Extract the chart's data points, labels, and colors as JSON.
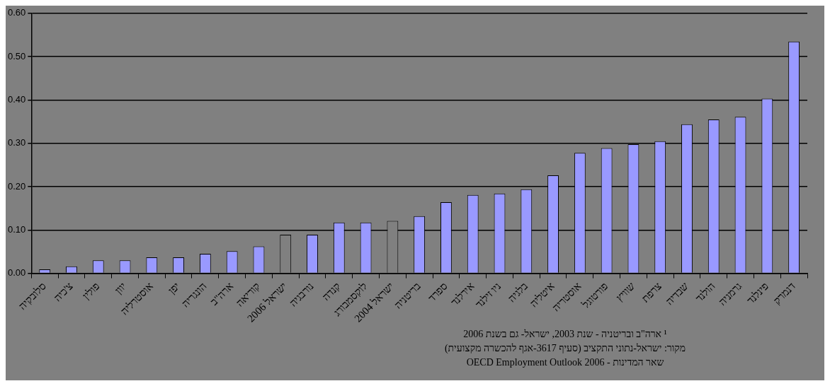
{
  "chart_data": {
    "type": "bar",
    "categories": [
      "סלובקיה",
      "צ'כיה",
      "פולין",
      "יוון",
      "אוסטרליה",
      "יפן",
      "הונגריה",
      "ארה\"ב",
      "קוריאה",
      "ישראל 2006",
      "נורבגיה",
      "קנדה",
      "לוקסמבורג",
      "ישראל 2004",
      "בריטניה",
      "ספרד",
      "אירלנד",
      "ניו זילנד",
      "בלגיה",
      "איטליה",
      "אוסטריה",
      "פורטוגל",
      "שוויץ",
      "צרפת",
      "שבדיה",
      "הולנד",
      "גרמניה",
      "פינלנד",
      "דנמרק"
    ],
    "values": [
      0.009,
      0.016,
      0.03,
      0.03,
      0.037,
      0.037,
      0.045,
      0.051,
      0.062,
      0.089,
      0.089,
      0.117,
      0.117,
      0.121,
      0.132,
      0.164,
      0.181,
      0.184,
      0.194,
      0.226,
      0.278,
      0.289,
      0.298,
      0.305,
      0.344,
      0.355,
      0.361,
      0.403,
      0.535
    ],
    "colors": [
      "#9999ff",
      "#9999ff",
      "#9999ff",
      "#9999ff",
      "#9999ff",
      "#9999ff",
      "#9999ff",
      "#9999ff",
      "#9999ff",
      "#808080",
      "#9999ff",
      "#9999ff",
      "#9999ff",
      "#808080",
      "#9999ff",
      "#9999ff",
      "#9999ff",
      "#9999ff",
      "#9999ff",
      "#9999ff",
      "#9999ff",
      "#9999ff",
      "#9999ff",
      "#9999ff",
      "#9999ff",
      "#9999ff",
      "#9999ff",
      "#9999ff",
      "#9999ff"
    ],
    "ylim": [
      0,
      0.6
    ],
    "yticks": [
      {
        "value": 0,
        "label": "0.00"
      },
      {
        "value": 0.1,
        "label": "0.10"
      },
      {
        "value": 0.2,
        "label": "0.20"
      },
      {
        "value": 0.3,
        "label": "0.30"
      },
      {
        "value": 0.4,
        "label": "0.40"
      },
      {
        "value": 0.5,
        "label": "0.50"
      },
      {
        "value": 0.6,
        "label": "0.60"
      }
    ],
    "grid": "y",
    "legend": false,
    "annotations": [
      "¹ ארה\"ב ובריטניה - שנת 2003, ישראל- גם בשנת 2006",
      "מקור: ישראל-נתוני התקציב (סעיף 3617-אגף להכשרה מקצועית)",
      "שאר המדינות - OECD Employment Outlook 2006"
    ]
  }
}
